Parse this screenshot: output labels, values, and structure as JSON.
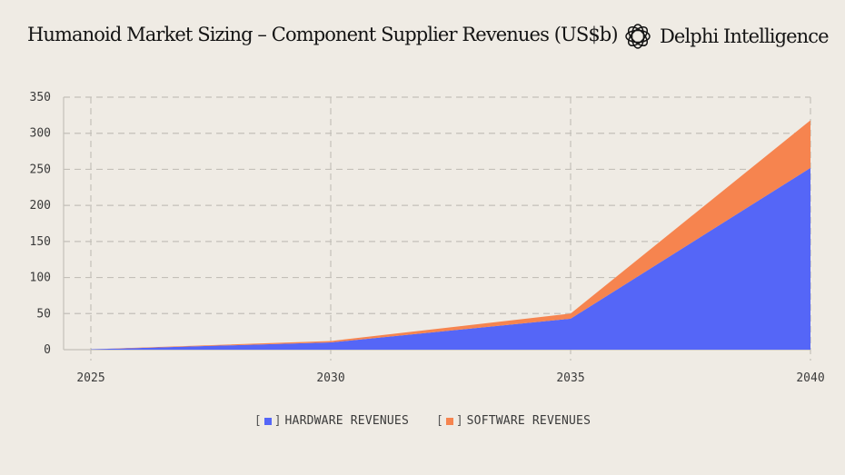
{
  "header": {
    "title": "Humanoid Market Sizing – Component Supplier Revenues (US$b)",
    "brand_name": "Delphi Intelligence",
    "brand_icon": "delphi-logo-icon"
  },
  "colors": {
    "background": "#efebe4",
    "hardware": "#5566f7",
    "software": "#f6844f",
    "grid": "#c4c0b9"
  },
  "legend": {
    "items": [
      {
        "label": "HARDWARE REVENUES",
        "color": "#5566f7"
      },
      {
        "label": "SOFTWARE REVENUES",
        "color": "#f6844f"
      }
    ]
  },
  "chart_data": {
    "type": "area",
    "stacked": true,
    "x": [
      2025,
      2030,
      2035,
      2040
    ],
    "series": [
      {
        "name": "HARDWARE REVENUES",
        "values": [
          0.5,
          10,
          43,
          252
        ],
        "color": "#5566f7"
      },
      {
        "name": "SOFTWARE REVENUES",
        "values": [
          0,
          2,
          7,
          66
        ],
        "color": "#f6844f"
      }
    ],
    "ylim": [
      0,
      350
    ],
    "yticks": [
      0,
      50,
      100,
      150,
      200,
      250,
      300,
      350
    ],
    "xticks": [
      "2025",
      "2030",
      "2035",
      "2040"
    ],
    "grid": true,
    "legend_position": "bottom"
  }
}
